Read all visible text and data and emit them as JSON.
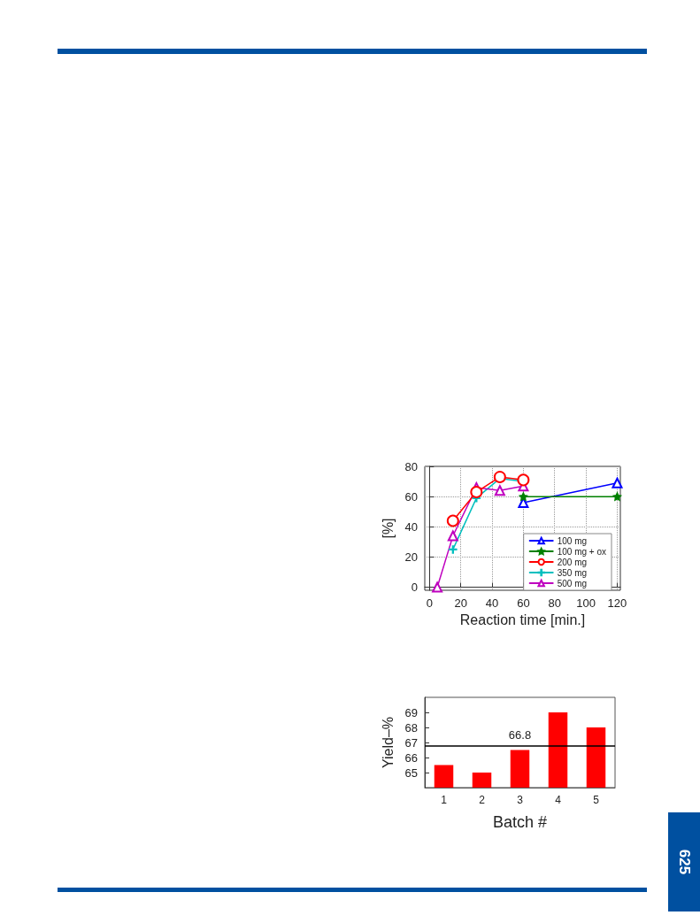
{
  "chart_data": [
    {
      "type": "line",
      "xlabel": "Reaction time [min.]",
      "ylabel": "[%]",
      "xlim": [
        -3,
        122
      ],
      "xticks": [
        0,
        20,
        40,
        60,
        80,
        100,
        120
      ],
      "ylim": [
        -2,
        80
      ],
      "yticks": [
        0,
        20,
        40,
        60,
        80
      ],
      "grid": true,
      "legend": "bottom right",
      "line_style": "solid",
      "series": [
        {
          "name": "100 mg",
          "color": "#0000ff",
          "marker": "triangle",
          "x": [
            60,
            120
          ],
          "values": [
            56,
            69
          ]
        },
        {
          "name": "100 mg + ox",
          "color": "#008000",
          "marker": "star",
          "x": [
            60,
            120
          ],
          "values": [
            60,
            60
          ]
        },
        {
          "name": "200 mg",
          "color": "#ff0000",
          "marker": "circle",
          "x": [
            15,
            30,
            45,
            60
          ],
          "values": [
            44,
            63,
            73,
            71
          ]
        },
        {
          "name": "350 mg",
          "color": "#00bfbf",
          "marker": "cross",
          "x": [
            15,
            30,
            45,
            60
          ],
          "values": [
            25,
            59,
            72,
            70
          ]
        },
        {
          "name": "500 mg",
          "color": "#bf00bf",
          "marker": "triangle",
          "x": [
            5,
            15,
            30,
            45,
            60
          ],
          "values": [
            0,
            34,
            66,
            64,
            67
          ]
        }
      ]
    },
    {
      "type": "bar",
      "xlabel": "Batch #",
      "ylabel": "Yield–%",
      "categories": [
        "1",
        "2",
        "3",
        "4",
        "5"
      ],
      "values": [
        65.5,
        65,
        66.5,
        69,
        68
      ],
      "color": "#ff0000",
      "ylim": [
        64,
        70
      ],
      "yticks": [
        65,
        66,
        67,
        68,
        69
      ],
      "grid": false,
      "ref_lines": [
        {
          "axis": "y",
          "value": 66.8,
          "label": "66.8",
          "color": "#000000"
        }
      ],
      "annotations": [
        "625"
      ]
    }
  ]
}
